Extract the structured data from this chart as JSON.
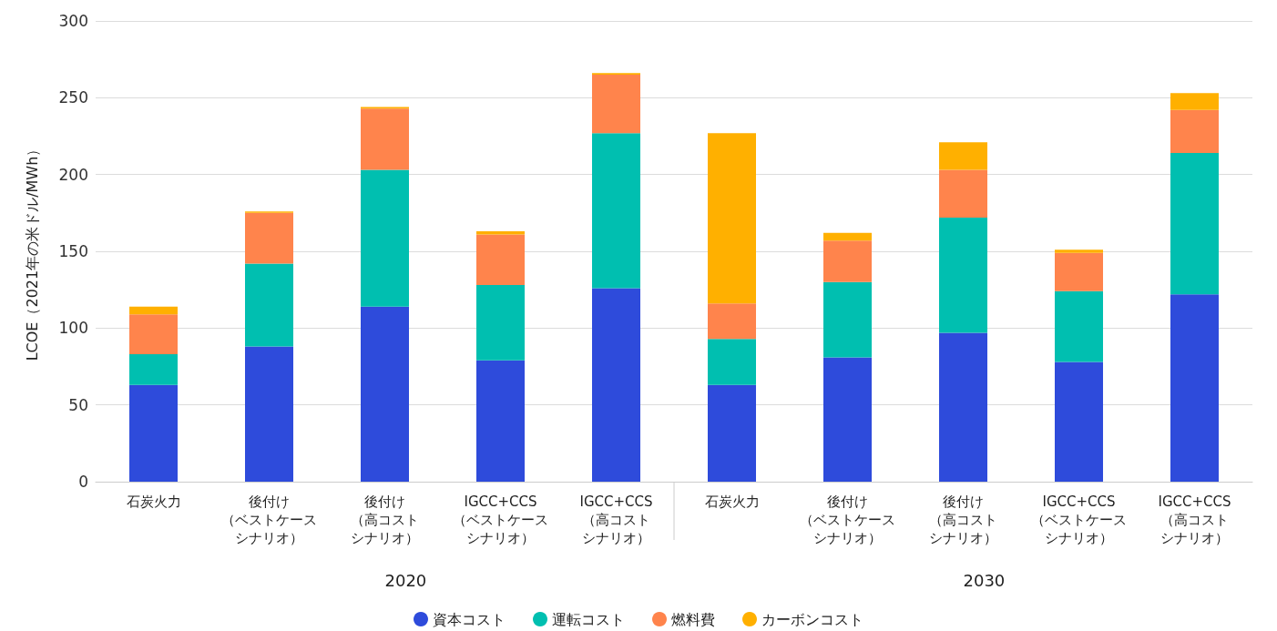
{
  "chart_data": {
    "type": "bar",
    "stacked": true,
    "ylabel": "LCOE（2021年の米ドル/MWh）",
    "categories": [
      "石炭火力",
      "後付け（ベストケースシナリオ）",
      "後付け（高コストシナリオ）",
      "IGCC+CCS（ベストケースシナリオ）",
      "IGCC+CCS（高コストシナリオ）",
      "石炭火力",
      "後付け（ベストケースシナリオ）",
      "後付け（高コストシナリオ）",
      "IGCC+CCS（ベストケースシナリオ）",
      "IGCC+CCS（高コストシナリオ）"
    ],
    "series": [
      {
        "name": "資本コスト",
        "color": "#2e4bdb",
        "values": [
          63,
          88,
          114,
          79,
          126,
          63,
          81,
          97,
          78,
          122
        ]
      },
      {
        "name": "運転コスト",
        "color": "#00bfb0",
        "values": [
          20,
          54,
          89,
          49,
          101,
          30,
          49,
          75,
          46,
          92
        ]
      },
      {
        "name": "燃料費",
        "color": "#ff844c",
        "values": [
          26,
          33,
          40,
          33,
          38,
          23,
          27,
          31,
          25,
          28
        ]
      },
      {
        "name": "カーボンコスト",
        "color": "#ffb000",
        "values": [
          5,
          1,
          1,
          2,
          1,
          111,
          5,
          18,
          2,
          11
        ]
      }
    ],
    "annotations": [
      "2020",
      "2030"
    ],
    "ylim": [
      0,
      300
    ],
    "yticks": [
      0,
      50,
      100,
      150,
      200,
      250,
      300
    ],
    "grid": "y",
    "legend": "bottom",
    "marker": "circle"
  }
}
